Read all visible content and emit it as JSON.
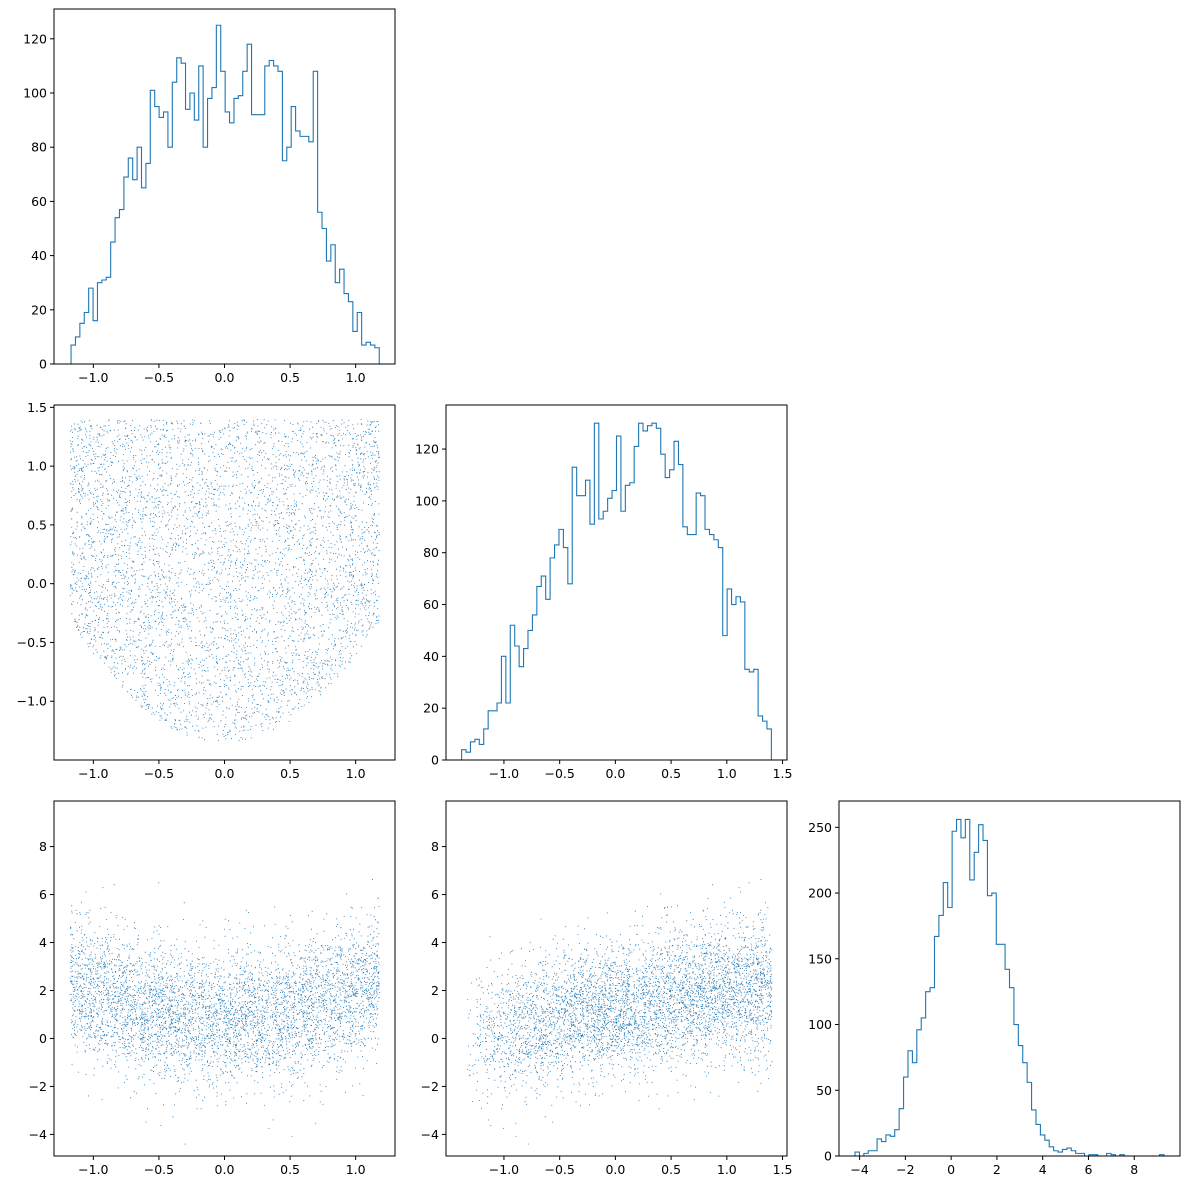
{
  "figure": {
    "accent_color": "#1f77b4",
    "background": "#ffffff"
  },
  "chart_data": [
    {
      "type": "histogram",
      "panel": "row1-col1",
      "variable": "x",
      "histtype": "step",
      "color": "#1f77b4",
      "bin_edges_range": [
        -1.17,
        1.18
      ],
      "bin_count": 70,
      "counts": [
        7,
        10,
        15,
        19,
        28,
        16,
        30,
        31,
        32,
        45,
        54,
        57,
        69,
        76,
        68,
        80,
        65,
        74,
        101,
        95,
        91,
        93,
        80,
        104,
        113,
        111,
        94,
        100,
        90,
        110,
        80,
        98,
        102,
        125,
        108,
        93,
        89,
        98,
        99,
        108,
        118,
        92,
        92,
        92,
        110,
        112,
        110,
        108,
        75,
        80,
        95,
        86,
        84,
        84,
        82,
        108,
        56,
        50,
        38,
        44,
        30,
        35,
        26,
        23,
        12,
        19,
        7,
        8,
        7,
        6
      ],
      "xlim": [
        -1.3,
        1.3
      ],
      "ylim": [
        0,
        131
      ],
      "xticks": [
        -1.0,
        -0.5,
        0.0,
        0.5,
        1.0
      ],
      "xtick_labels": [
        "−1.0",
        "−0.5",
        "0.0",
        "0.5",
        "1.0"
      ],
      "yticks": [
        0,
        20,
        40,
        60,
        80,
        100,
        120
      ],
      "ytick_labels": [
        "0",
        "20",
        "40",
        "60",
        "80",
        "100",
        "120"
      ],
      "title": "",
      "xlabel": "",
      "ylabel": ""
    },
    {
      "type": "scatter",
      "panel": "row2-col1",
      "variables": [
        "x",
        "y"
      ],
      "point_count": 5000,
      "color": "#1f77b4",
      "x_range": [
        -1.18,
        1.18
      ],
      "y_range": [
        -1.35,
        1.4
      ],
      "shape": "U-shaped (parabolic) band; y lower bound rises with |x|",
      "xlim": [
        -1.3,
        1.3
      ],
      "ylim": [
        -1.5,
        1.52
      ],
      "xticks": [
        -1.0,
        -0.5,
        0.0,
        0.5,
        1.0
      ],
      "xtick_labels": [
        "−1.0",
        "−0.5",
        "0.0",
        "0.5",
        "1.0"
      ],
      "yticks": [
        -1.0,
        -0.5,
        0.0,
        0.5,
        1.0,
        1.5
      ],
      "ytick_labels": [
        "−1.0",
        "−0.5",
        "0.0",
        "0.5",
        "1.0",
        "1.5"
      ],
      "title": "",
      "xlabel": "",
      "ylabel": ""
    },
    {
      "type": "histogram",
      "panel": "row2-col2",
      "variable": "y",
      "histtype": "step",
      "color": "#1f77b4",
      "bin_edges_range": [
        -1.38,
        1.4
      ],
      "bin_count": 70,
      "counts": [
        4,
        3,
        7,
        8,
        6,
        12,
        19,
        19,
        22,
        40,
        22,
        52,
        44,
        36,
        43,
        50,
        56,
        67,
        71,
        62,
        78,
        83,
        89,
        82,
        68,
        113,
        102,
        102,
        108,
        91,
        130,
        93,
        96,
        101,
        104,
        125,
        96,
        106,
        107,
        121,
        130,
        127,
        129,
        130,
        128,
        118,
        109,
        112,
        123,
        114,
        90,
        87,
        87,
        103,
        102,
        89,
        87,
        85,
        82,
        48,
        66,
        60,
        63,
        61,
        35,
        34,
        35,
        17,
        15,
        12
      ],
      "xlim": [
        -1.52,
        1.54
      ],
      "ylim": [
        0,
        137
      ],
      "xticks": [
        -1.0,
        -0.5,
        0.0,
        0.5,
        1.0,
        1.5
      ],
      "xtick_labels": [
        "−1.0",
        "−0.5",
        "0.0",
        "0.5",
        "1.0",
        "1.5"
      ],
      "yticks": [
        0,
        20,
        40,
        60,
        80,
        100,
        120
      ],
      "ytick_labels": [
        "0",
        "20",
        "40",
        "60",
        "80",
        "100",
        "120"
      ],
      "title": "",
      "xlabel": "",
      "ylabel": ""
    },
    {
      "type": "scatter",
      "panel": "row3-col1",
      "variables": [
        "x",
        "z"
      ],
      "point_count": 5000,
      "color": "#1f77b4",
      "x_range": [
        -1.18,
        1.18
      ],
      "y_range": [
        -4.2,
        9.3
      ],
      "shape": "broad cloud centered near z=0.8, slight upward curvature at edges",
      "xlim": [
        -1.3,
        1.3
      ],
      "ylim": [
        -4.9,
        9.9
      ],
      "xticks": [
        -1.0,
        -0.5,
        0.0,
        0.5,
        1.0
      ],
      "xtick_labels": [
        "−1.0",
        "−0.5",
        "0.0",
        "0.5",
        "1.0"
      ],
      "yticks": [
        -4,
        -2,
        0,
        2,
        4,
        6,
        8
      ],
      "ytick_labels": [
        "−4",
        "−2",
        "0",
        "2",
        "4",
        "6",
        "8"
      ],
      "title": "",
      "xlabel": "",
      "ylabel": ""
    },
    {
      "type": "scatter",
      "panel": "row3-col2",
      "variables": [
        "y",
        "z"
      ],
      "point_count": 5000,
      "color": "#1f77b4",
      "x_range": [
        -1.38,
        1.4
      ],
      "y_range": [
        -4.2,
        9.3
      ],
      "shape": "V-shaped band; z lower bound rises with y, minimum near y=0",
      "xlim": [
        -1.52,
        1.54
      ],
      "ylim": [
        -4.9,
        9.9
      ],
      "xticks": [
        -1.0,
        -0.5,
        0.0,
        0.5,
        1.0,
        1.5
      ],
      "xtick_labels": [
        "−1.0",
        "−0.5",
        "0.0",
        "0.5",
        "1.0",
        "1.5"
      ],
      "yticks": [
        -4,
        -2,
        0,
        2,
        4,
        6,
        8
      ],
      "ytick_labels": [
        "−4",
        "−2",
        "0",
        "2",
        "4",
        "6",
        "8"
      ],
      "title": "",
      "xlabel": "",
      "ylabel": ""
    },
    {
      "type": "histogram",
      "panel": "row3-col3",
      "variable": "z",
      "histtype": "step",
      "color": "#1f77b4",
      "bin_edges_range": [
        -4.2,
        9.3
      ],
      "bin_count": 70,
      "counts": [
        3,
        0,
        2,
        4,
        4,
        13,
        11,
        16,
        15,
        20,
        36,
        60,
        80,
        71,
        96,
        105,
        125,
        128,
        167,
        183,
        208,
        189,
        247,
        256,
        242,
        256,
        210,
        231,
        252,
        240,
        198,
        200,
        161,
        161,
        142,
        128,
        100,
        84,
        71,
        56,
        35,
        24,
        16,
        12,
        7,
        4,
        3,
        5,
        6,
        4,
        2,
        2,
        0,
        1,
        1,
        0,
        0,
        2,
        1,
        0,
        1,
        0,
        0,
        0,
        0,
        0,
        0,
        0,
        0,
        1
      ],
      "xlim": [
        -4.9,
        10.0
      ],
      "ylim": [
        0,
        270
      ],
      "xticks": [
        -4,
        -2,
        0,
        2,
        4,
        6,
        8
      ],
      "xtick_labels": [
        "−4",
        "−2",
        "0",
        "2",
        "4",
        "6",
        "8"
      ],
      "yticks": [
        0,
        50,
        100,
        150,
        200,
        250
      ],
      "ytick_labels": [
        "0",
        "50",
        "100",
        "150",
        "200",
        "250"
      ],
      "title": "",
      "xlabel": "",
      "ylabel": ""
    }
  ]
}
